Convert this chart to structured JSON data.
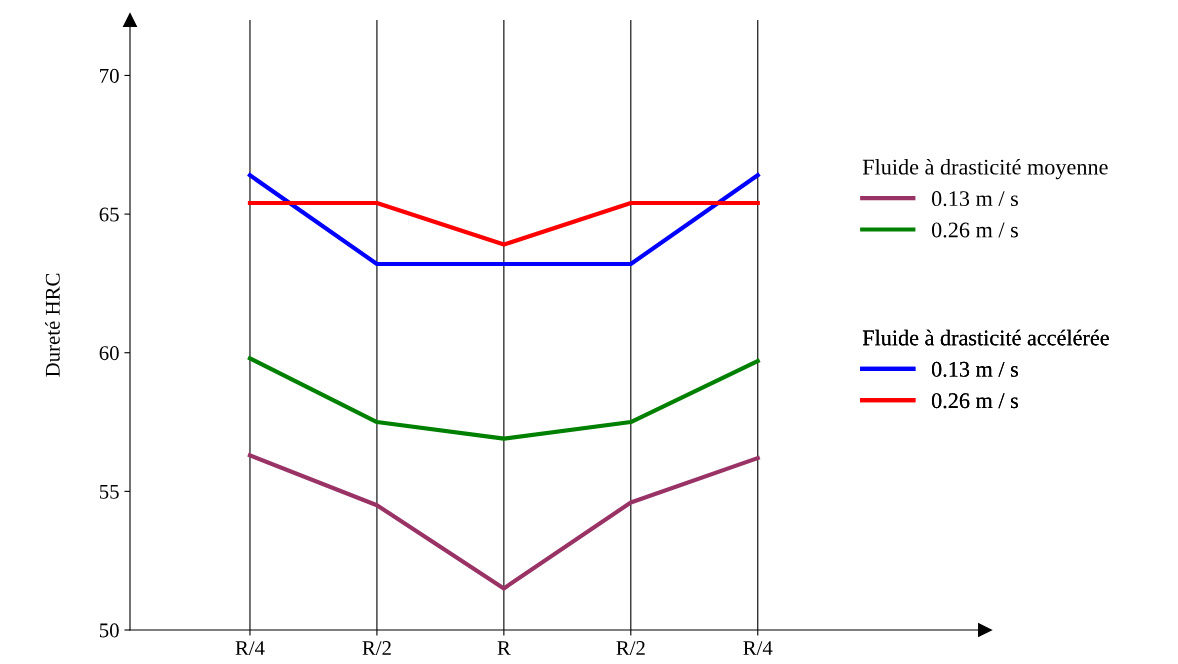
{
  "chart_data": {
    "type": "line",
    "ylabel": "Dureté HRC",
    "categories": [
      "R/4",
      "R/2",
      "R",
      "R/2",
      "R/4"
    ],
    "series": [
      {
        "name": "0.13 m / s",
        "color": "#993366",
        "values": [
          56.3,
          54.5,
          51.5,
          54.6,
          56.2
        ]
      },
      {
        "name": "0.26 m / s",
        "color": "#008000",
        "values": [
          59.8,
          57.5,
          56.9,
          57.5,
          59.7
        ]
      },
      {
        "name": "0.13 m / s",
        "color": "#0000ff",
        "values": [
          66.4,
          63.2,
          63.2,
          63.2,
          66.4
        ]
      },
      {
        "name": "0.26 m / s",
        "color": "#ff0000",
        "values": [
          65.4,
          65.4,
          63.9,
          65.4,
          65.4
        ]
      }
    ],
    "annotations": [
      "Fluide à drasticité moyenne",
      "Fluide à drasticité accélérée"
    ],
    "ylim": [
      50,
      72
    ],
    "yticks": [
      50,
      55,
      60,
      65,
      70
    ],
    "grid": "x",
    "legend": "right",
    "marker": "none",
    "line_style": "solid"
  }
}
